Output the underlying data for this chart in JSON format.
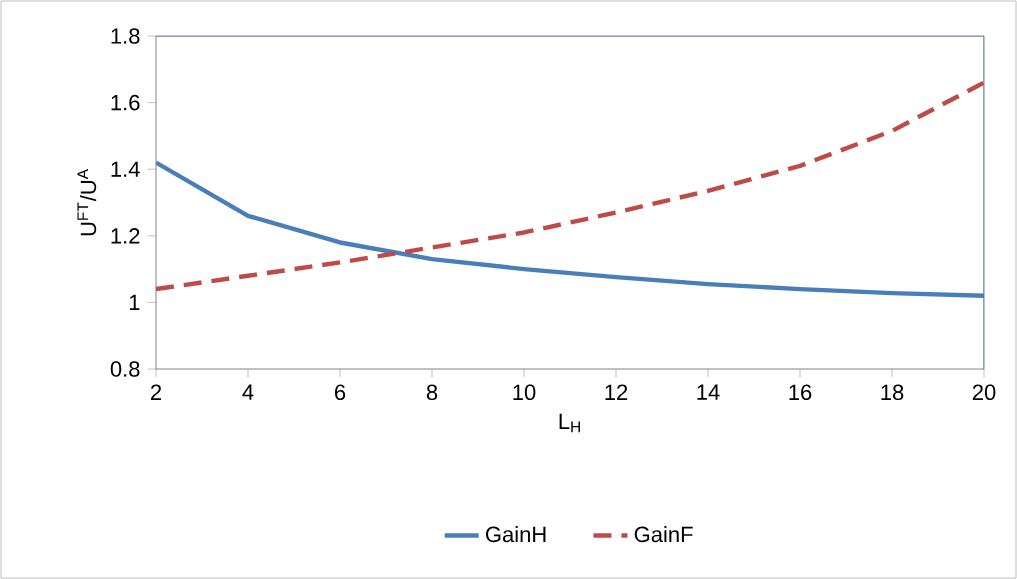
{
  "chart_data": {
    "type": "line",
    "xlabel": "L$_{H}$",
    "ylabel": "U$^{FT}$/U$^{A}$",
    "x": [
      2,
      4,
      6,
      8,
      10,
      12,
      14,
      16,
      18,
      20
    ],
    "series": [
      {
        "name": "GainH",
        "color": "#4a7ebb",
        "line_style": "solid",
        "values": [
          1.42,
          1.26,
          1.18,
          1.13,
          1.1,
          1.076,
          1.055,
          1.04,
          1.028,
          1.02
        ]
      },
      {
        "name": "GainF",
        "color": "#be4b48",
        "line_style": "dashed",
        "values": [
          1.04,
          1.08,
          1.12,
          1.165,
          1.21,
          1.27,
          1.335,
          1.41,
          1.515,
          1.66
        ]
      }
    ],
    "xlim": [
      2,
      20
    ],
    "ylim": [
      0.8,
      1.8
    ],
    "xticks": [
      2,
      4,
      6,
      8,
      10,
      12,
      14,
      16,
      18,
      20
    ],
    "yticks": [
      0.8,
      1,
      1.2,
      1.4,
      1.6,
      1.8
    ],
    "grid": false,
    "legend": "bottom",
    "marker": "none"
  }
}
